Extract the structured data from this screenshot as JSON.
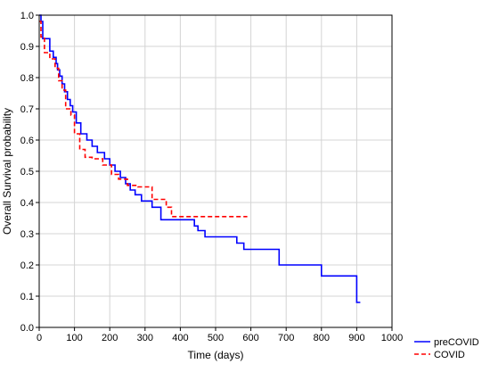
{
  "chart_data": {
    "type": "line",
    "title": "",
    "xlabel": "Time (days)",
    "ylabel": "Overall Survival probability",
    "xlim": [
      0,
      1000
    ],
    "ylim": [
      0.0,
      1.0
    ],
    "xticks": [
      0,
      100,
      200,
      300,
      400,
      500,
      600,
      700,
      800,
      900,
      1000
    ],
    "yticks": [
      0.0,
      0.1,
      0.2,
      0.3,
      0.4,
      0.5,
      0.6,
      0.7,
      0.8,
      0.9,
      1.0
    ],
    "x_tick_labels": [
      "0",
      "100",
      "200",
      "300",
      "400",
      "500",
      "600",
      "700",
      "800",
      "900",
      "1000"
    ],
    "y_tick_labels": [
      "0.0",
      "0.1",
      "0.2",
      "0.3",
      "0.4",
      "0.5",
      "0.6",
      "0.7",
      "0.8",
      "0.9",
      "1.0"
    ],
    "grid": true,
    "legend_position": "bottom-right",
    "series": [
      {
        "name": "preCOVID",
        "color": "#0000ff",
        "style": "solid",
        "x": [
          0,
          5,
          10,
          30,
          40,
          48,
          52,
          58,
          65,
          72,
          80,
          88,
          95,
          105,
          118,
          135,
          150,
          165,
          185,
          200,
          215,
          230,
          245,
          258,
          272,
          290,
          320,
          345,
          440,
          450,
          470,
          560,
          580,
          680,
          710,
          800,
          890,
          900,
          910
        ],
        "y": [
          1.0,
          0.98,
          0.925,
          0.885,
          0.865,
          0.845,
          0.825,
          0.805,
          0.78,
          0.755,
          0.73,
          0.71,
          0.69,
          0.655,
          0.62,
          0.6,
          0.58,
          0.56,
          0.54,
          0.52,
          0.5,
          0.48,
          0.46,
          0.44,
          0.425,
          0.405,
          0.385,
          0.345,
          0.325,
          0.31,
          0.29,
          0.27,
          0.25,
          0.2,
          0.2,
          0.165,
          0.165,
          0.08,
          0.08
        ]
      },
      {
        "name": "COVID",
        "color": "#ff0000",
        "style": "dashed",
        "x": [
          0,
          5,
          15,
          30,
          45,
          55,
          65,
          75,
          90,
          100,
          115,
          130,
          150,
          180,
          205,
          225,
          250,
          280,
          320,
          360,
          375,
          590
        ],
        "y": [
          0.98,
          0.93,
          0.88,
          0.86,
          0.83,
          0.79,
          0.76,
          0.7,
          0.68,
          0.62,
          0.57,
          0.545,
          0.54,
          0.52,
          0.49,
          0.475,
          0.455,
          0.45,
          0.41,
          0.385,
          0.355,
          0.355
        ]
      }
    ]
  }
}
